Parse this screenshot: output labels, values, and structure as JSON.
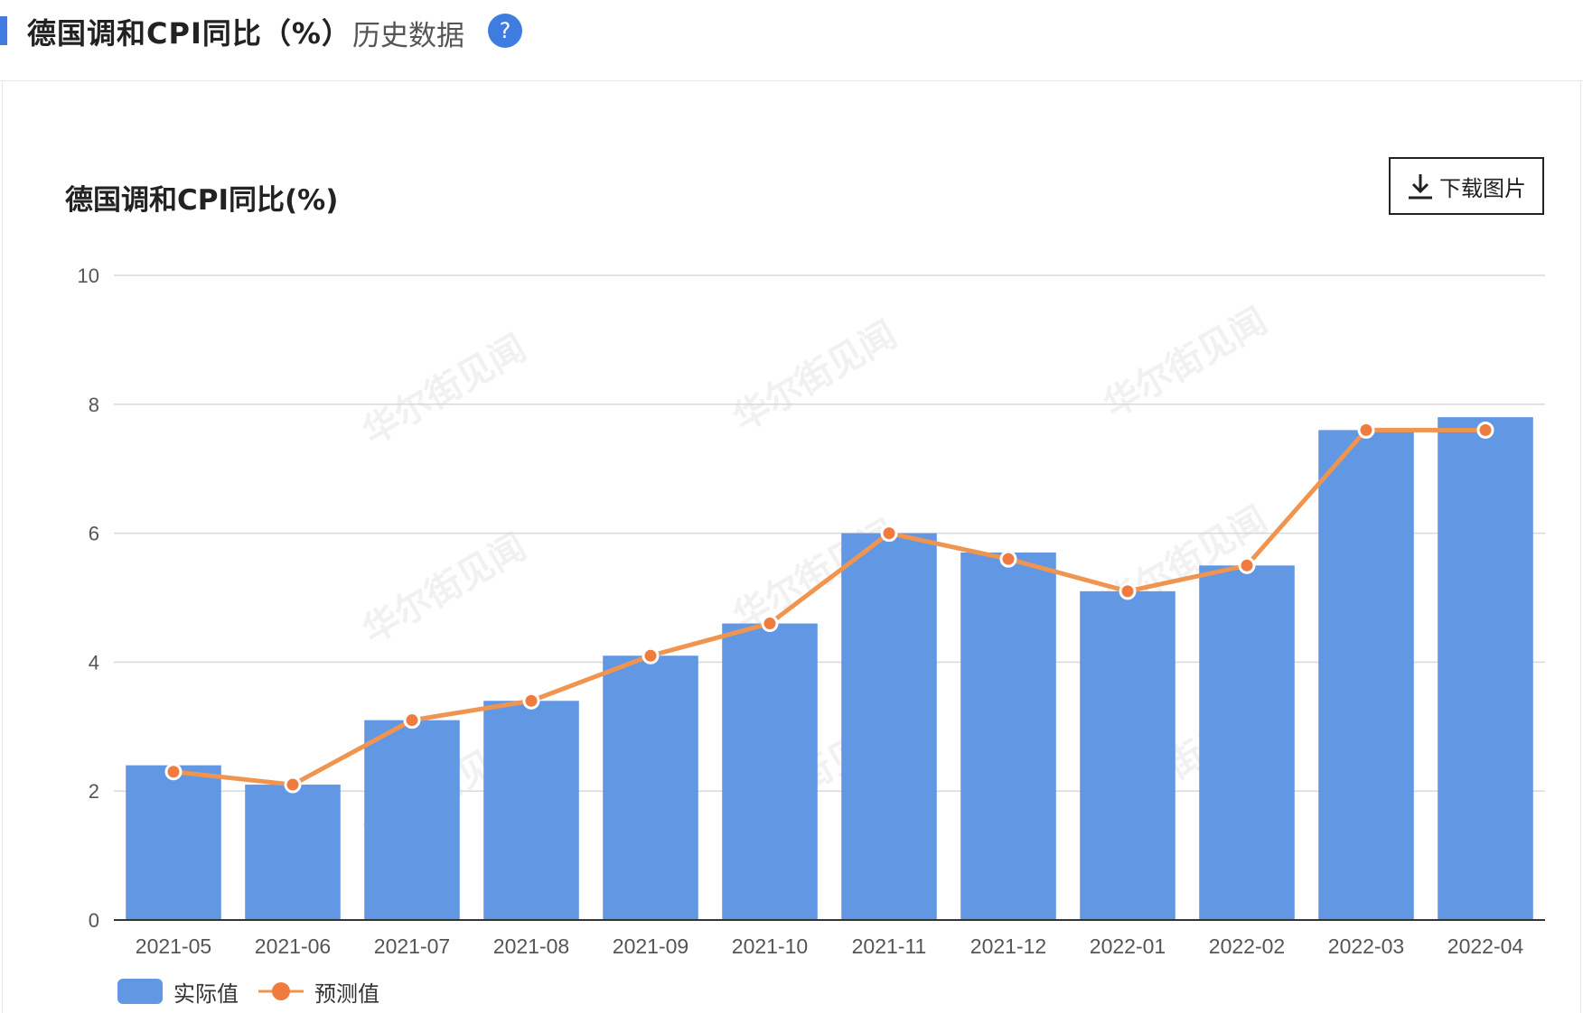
{
  "header": {
    "title": "德国调和CPI同比（%）",
    "history_label": "历史数据",
    "help_glyph": "?"
  },
  "download": {
    "label": "下载图片"
  },
  "watermark_text": "华尔街见闻",
  "colors": {
    "accent": "#3f7ce0",
    "bar": "#6297e3",
    "line": "#ef9550",
    "marker": "#ef7b3f"
  },
  "chart_data": {
    "type": "bar",
    "title": "德国调和CPI同比(%)",
    "categories": [
      "2021-05",
      "2021-06",
      "2021-07",
      "2021-08",
      "2021-09",
      "2021-10",
      "2021-11",
      "2021-12",
      "2022-01",
      "2022-02",
      "2022-03",
      "2022-04"
    ],
    "series": [
      {
        "name": "实际值",
        "type": "bar",
        "values": [
          2.4,
          2.1,
          3.1,
          3.4,
          4.1,
          4.6,
          6.0,
          5.7,
          5.1,
          5.5,
          7.6,
          7.8
        ]
      },
      {
        "name": "预测值",
        "type": "line",
        "values": [
          2.3,
          2.1,
          3.1,
          3.4,
          4.1,
          4.6,
          6.0,
          5.6,
          5.1,
          5.5,
          7.6,
          7.6
        ]
      }
    ],
    "ylim": [
      0,
      10
    ],
    "yticks": [
      0,
      2,
      4,
      6,
      8,
      10
    ],
    "grid": true,
    "legend_position": "bottom-left"
  }
}
